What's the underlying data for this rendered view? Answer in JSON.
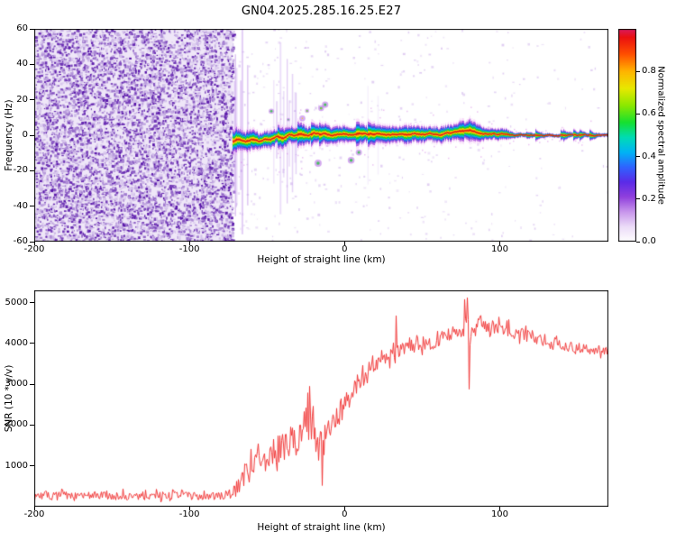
{
  "title": "GN04.2025.285.16.25.E27",
  "chart_data": [
    {
      "type": "heatmap",
      "title": "GN04.2025.285.16.25.E27",
      "xlabel": "Height of straight line (km)",
      "ylabel": "Frequency (Hz)",
      "xlim": [
        -200,
        170
      ],
      "ylim": [
        -60,
        60
      ],
      "xticks": [
        -200,
        -100,
        0,
        100
      ],
      "xtick_labels": [
        "-200",
        "-100",
        "0",
        "100"
      ],
      "yticks": [
        60,
        40,
        20,
        0,
        -20,
        -40,
        -60
      ],
      "ytick_labels": [
        "60",
        "40",
        "20",
        "0",
        "-20",
        "-40",
        "-60"
      ],
      "grid": false,
      "noise_region": {
        "x_start": -200,
        "x_end": -72,
        "description": "dense random purple speckle noise filling full frequency range"
      },
      "signal": {
        "x_start": -72,
        "x_end": 170,
        "thin_line_from": 108,
        "center_trace": [
          [
            -72,
            -3.5,
            5.5
          ],
          [
            -68,
            -2.5,
            4.5
          ],
          [
            -64,
            -4,
            4
          ],
          [
            -60,
            -2,
            4.5
          ],
          [
            -56,
            -3.5,
            4
          ],
          [
            -52,
            -2,
            4
          ],
          [
            -48,
            -2.5,
            4.5
          ],
          [
            -44,
            -1,
            4
          ],
          [
            -40,
            -2,
            4.5
          ],
          [
            -36,
            0.5,
            4
          ],
          [
            -32,
            -0.5,
            4.5
          ],
          [
            -28,
            1,
            5
          ],
          [
            -24,
            0,
            4.5
          ],
          [
            -20,
            1.5,
            4.5
          ],
          [
            -16,
            0.5,
            4
          ],
          [
            -12,
            1,
            4.5
          ],
          [
            -8,
            0,
            4
          ],
          [
            -4,
            0.5,
            4.5
          ],
          [
            0,
            1,
            4
          ],
          [
            5,
            0,
            4
          ],
          [
            10,
            1,
            4.5
          ],
          [
            15,
            0.5,
            4
          ],
          [
            20,
            1,
            4
          ],
          [
            25,
            0,
            4.5
          ],
          [
            30,
            0.5,
            4
          ],
          [
            35,
            1,
            4
          ],
          [
            40,
            0.5,
            4.5
          ],
          [
            45,
            1,
            4
          ],
          [
            50,
            0.5,
            4
          ],
          [
            55,
            1,
            3.5
          ],
          [
            60,
            0.5,
            4
          ],
          [
            65,
            1,
            4
          ],
          [
            70,
            1.5,
            4
          ],
          [
            75,
            2,
            4.5
          ],
          [
            80,
            2.5,
            4.5
          ],
          [
            85,
            1.5,
            4
          ],
          [
            90,
            1,
            3.5
          ],
          [
            95,
            1,
            3
          ],
          [
            100,
            0.5,
            3
          ],
          [
            104,
            0.5,
            2.5
          ],
          [
            108,
            0,
            1.6
          ],
          [
            115,
            0,
            1
          ],
          [
            130,
            0,
            0.9
          ],
          [
            150,
            0,
            0.9
          ],
          [
            170,
            0,
            0.9
          ]
        ]
      },
      "colorbar": {
        "label": "Normalized spectral amplitude",
        "range": [
          0,
          1
        ],
        "ticks": [
          0.0,
          0.2,
          0.4,
          0.6,
          0.8
        ],
        "tick_labels": [
          "0.0",
          "0.2",
          "0.4",
          "0.6",
          "0.8"
        ],
        "stops": [
          [
            0.0,
            "#ffffff"
          ],
          [
            0.07,
            "#ecdcf8"
          ],
          [
            0.14,
            "#c896ec"
          ],
          [
            0.21,
            "#9040dd"
          ],
          [
            0.28,
            "#5b2be8"
          ],
          [
            0.35,
            "#2f63ff"
          ],
          [
            0.42,
            "#00b4f5"
          ],
          [
            0.49,
            "#00dcb4"
          ],
          [
            0.56,
            "#16e030"
          ],
          [
            0.64,
            "#8ce800"
          ],
          [
            0.72,
            "#e8e800"
          ],
          [
            0.8,
            "#ffb400"
          ],
          [
            0.88,
            "#ff5000"
          ],
          [
            0.96,
            "#eb1010"
          ],
          [
            1.0,
            "#d81b60"
          ]
        ]
      }
    },
    {
      "type": "line",
      "xlabel": "Height of straight line (km)",
      "ylabel": "SNR (10 * v/v)",
      "xlim": [
        -200,
        170
      ],
      "ylim": [
        0,
        5300
      ],
      "xticks": [
        -200,
        -100,
        0,
        100
      ],
      "xtick_labels": [
        "-200",
        "-100",
        "0",
        "100"
      ],
      "yticks": [
        1000,
        2000,
        3000,
        4000,
        5000
      ],
      "ytick_labels": [
        "1000",
        "2000",
        "3000",
        "4000",
        "5000"
      ],
      "grid": false,
      "line_color": "#f23b3b",
      "series": [
        {
          "name": "SNR",
          "mean_profile": [
            [
              -200,
              260,
              140
            ],
            [
              -180,
              260,
              140
            ],
            [
              -160,
              270,
              140
            ],
            [
              -140,
              260,
              140
            ],
            [
              -120,
              265,
              140
            ],
            [
              -100,
              260,
              140
            ],
            [
              -85,
              270,
              145
            ],
            [
              -75,
              280,
              150
            ],
            [
              -70,
              420,
              220
            ],
            [
              -66,
              750,
              300
            ],
            [
              -62,
              950,
              350
            ],
            [
              -58,
              1050,
              400
            ],
            [
              -54,
              1050,
              420
            ],
            [
              -50,
              1250,
              450
            ],
            [
              -46,
              1300,
              480
            ],
            [
              -42,
              1450,
              500
            ],
            [
              -38,
              1450,
              520
            ],
            [
              -34,
              1600,
              560
            ],
            [
              -30,
              1750,
              600
            ],
            [
              -26,
              1900,
              650
            ],
            [
              -23,
              2000,
              700
            ],
            [
              -20,
              1800,
              550
            ],
            [
              -17,
              1400,
              600
            ],
            [
              -14,
              1500,
              550
            ],
            [
              -11,
              1900,
              500
            ],
            [
              -8,
              2150,
              450
            ],
            [
              -5,
              2300,
              420
            ],
            [
              -2,
              2450,
              400
            ],
            [
              2,
              2650,
              380
            ],
            [
              6,
              2900,
              350
            ],
            [
              10,
              3100,
              330
            ],
            [
              14,
              3300,
              300
            ],
            [
              18,
              3450,
              280
            ],
            [
              22,
              3550,
              260
            ],
            [
              26,
              3650,
              260
            ],
            [
              30,
              3720,
              260
            ],
            [
              34,
              3780,
              300
            ],
            [
              38,
              3820,
              260
            ],
            [
              42,
              3870,
              240
            ],
            [
              46,
              3920,
              220
            ],
            [
              50,
              3960,
              210
            ],
            [
              55,
              4000,
              210
            ],
            [
              60,
              4050,
              210
            ],
            [
              65,
              4100,
              220
            ],
            [
              70,
              4150,
              240
            ],
            [
              74,
              4250,
              300
            ],
            [
              78,
              4450,
              400
            ],
            [
              80,
              4200,
              600
            ],
            [
              83,
              4400,
              350
            ],
            [
              86,
              4480,
              300
            ],
            [
              90,
              4480,
              260
            ],
            [
              95,
              4430,
              250
            ],
            [
              100,
              4380,
              230
            ],
            [
              105,
              4320,
              220
            ],
            [
              110,
              4260,
              210
            ],
            [
              115,
              4210,
              200
            ],
            [
              120,
              4160,
              200
            ],
            [
              125,
              4110,
              190
            ],
            [
              130,
              4060,
              190
            ],
            [
              135,
              4010,
              185
            ],
            [
              140,
              3960,
              185
            ],
            [
              145,
              3930,
              180
            ],
            [
              150,
              3900,
              180
            ],
            [
              155,
              3870,
              180
            ],
            [
              160,
              3840,
              180
            ],
            [
              165,
              3810,
              180
            ],
            [
              170,
              3790,
              180
            ]
          ],
          "spikes": [
            [
              -23,
              2950
            ],
            [
              -15,
              520
            ],
            [
              33,
              4680
            ],
            [
              77,
              5080
            ],
            [
              79,
              5120
            ],
            [
              80,
              2880
            ]
          ]
        }
      ]
    }
  ]
}
